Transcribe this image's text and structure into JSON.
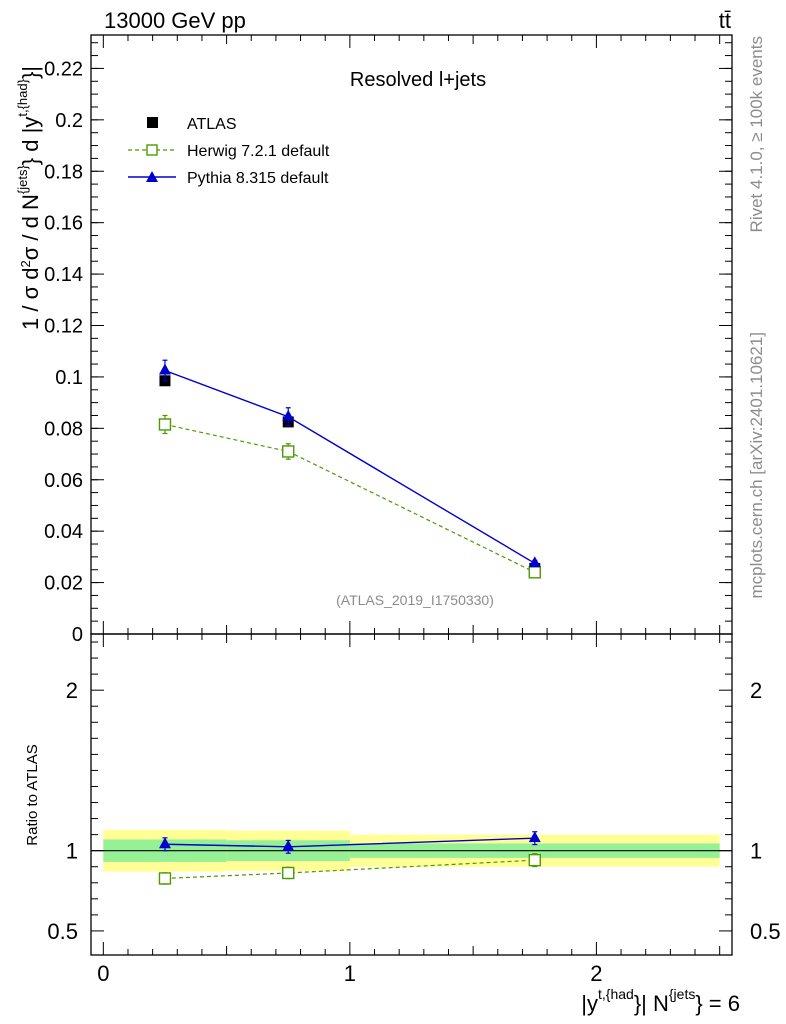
{
  "header": {
    "energy": "13000 GeV pp",
    "process": "tt̄"
  },
  "side_text": {
    "rivet": "Rivet 4.1.0, ≥ 100k events",
    "mcplots": "mcplots.cern.ch [arXiv:2401.10621]"
  },
  "analysis_id": "(ATLAS_2019_I1750330)",
  "colors": {
    "atlas": "#000000",
    "herwig": "#4c9a00",
    "pythia": "#0000cc",
    "band_inner": "#96f096",
    "band_outer": "#ffff96"
  },
  "chart_data": [
    {
      "type": "scatter",
      "title": "Resolved l+jets",
      "ylabel": "1 / σ d²σ / d N^{jets} d |y^{t,{had}}|",
      "ylim": [
        0,
        0.233
      ],
      "yticks": [
        0,
        0.02,
        0.04,
        0.06,
        0.08,
        0.1,
        0.12,
        0.14,
        0.16,
        0.18,
        0.2,
        0.22
      ],
      "ytick_labels": [
        "0",
        "0.02",
        "0.04",
        "0.06",
        "0.08",
        "0.1",
        "0.12",
        "0.14",
        "0.16",
        "0.18",
        "0.2",
        "0.22"
      ],
      "x": [
        0.25,
        0.75,
        1.75
      ],
      "legend": {
        "position": "top-left",
        "entries": [
          "ATLAS",
          "Herwig 7.2.1 default",
          "Pythia 8.315 default"
        ]
      },
      "series": [
        {
          "name": "ATLAS",
          "values": [
            0.0985,
            0.0825,
            0.0255
          ],
          "errors": [
            0.001,
            0.001,
            0.0007
          ]
        },
        {
          "name": "Herwig 7.2.1 default",
          "values": [
            0.0815,
            0.071,
            0.024
          ],
          "errors": [
            0.0035,
            0.003,
            0.0012
          ]
        },
        {
          "name": "Pythia 8.315 default",
          "values": [
            0.1025,
            0.0845,
            0.0275
          ],
          "errors": [
            0.004,
            0.0035,
            0.0011
          ]
        }
      ]
    },
    {
      "type": "scatter",
      "title": "",
      "xlabel": "|y^{t,{had}}| N^{jets} = 6",
      "ylabel": "Ratio to ATLAS",
      "xlim": [
        -0.05,
        2.55
      ],
      "xticks": [
        0,
        1,
        2
      ],
      "xtick_labels": [
        "0",
        "1",
        "2"
      ],
      "ylim": [
        0.35,
        2.35
      ],
      "yticks": [
        0.5,
        1,
        2
      ],
      "ytick_labels": [
        "0.5",
        "1",
        "2"
      ],
      "x": [
        0.25,
        0.75,
        1.75
      ],
      "bins": [
        [
          0,
          0.5
        ],
        [
          0.5,
          1.0
        ],
        [
          1.0,
          2.5
        ]
      ],
      "bands": {
        "inner": [
          [
            0.93,
            1.07
          ],
          [
            0.935,
            1.065
          ],
          [
            0.955,
            1.045
          ]
        ],
        "outer": [
          [
            0.87,
            1.13
          ],
          [
            0.875,
            1.125
          ],
          [
            0.9,
            1.1
          ]
        ]
      },
      "series": [
        {
          "name": "Herwig 7.2.1 default",
          "values": [
            0.827,
            0.861,
            0.941
          ],
          "errors": [
            0.035,
            0.035,
            0.04
          ]
        },
        {
          "name": "Pythia 8.315 default",
          "values": [
            1.04,
            1.024,
            1.078
          ],
          "errors": [
            0.04,
            0.04,
            0.04
          ]
        }
      ]
    }
  ]
}
